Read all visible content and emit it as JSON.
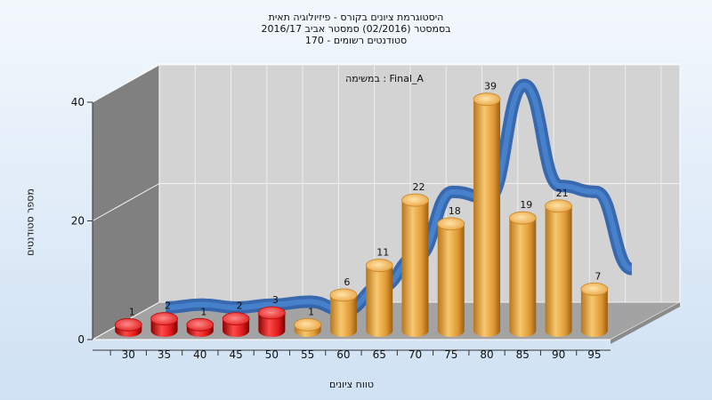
{
  "title_lines": [
    "היסטוגרמת ציונים בקורס - פיזיולוגיה תאית",
    "בסמסטר (02/2016) סמסטר אביב 2016/17",
    "170 - סטודנטים רשומים"
  ],
  "chart_data": {
    "type": "bar",
    "ylabel": "מספר סטודנטים",
    "xlabel": "טווח ציונים",
    "annotation": "במשימה : Final_A",
    "x_ticks": [
      "30",
      "35",
      "40",
      "45",
      "50",
      "55",
      "60",
      "65",
      "70",
      "75",
      "80",
      "85",
      "90",
      "95"
    ],
    "y_ticks": [
      "0",
      "20",
      "40"
    ],
    "ylim": [
      0,
      40
    ],
    "bars": [
      {
        "bin": "30",
        "value": 1,
        "label": "1",
        "status": "fail"
      },
      {
        "bin": "35",
        "value": 2,
        "label": "2",
        "status": "fail"
      },
      {
        "bin": "40",
        "value": 1,
        "label": "1",
        "status": "fail"
      },
      {
        "bin": "45",
        "value": 2,
        "label": "2",
        "status": "fail"
      },
      {
        "bin": "50",
        "value": 3,
        "label": "3",
        "status": "fail"
      },
      {
        "bin": "55",
        "value": 1,
        "label": "1",
        "status": "pass"
      },
      {
        "bin": "60",
        "value": 6,
        "label": "6",
        "status": "pass"
      },
      {
        "bin": "65",
        "value": 11,
        "label": "11",
        "status": "pass"
      },
      {
        "bin": "70",
        "value": 22,
        "label": "22",
        "status": "pass"
      },
      {
        "bin": "75",
        "value": 18,
        "label": "18",
        "status": "pass"
      },
      {
        "bin": "80",
        "value": 39,
        "label": "39",
        "status": "pass"
      },
      {
        "bin": "85",
        "value": 19,
        "label": "19",
        "status": "pass"
      },
      {
        "bin": "90",
        "value": 21,
        "label": "21",
        "status": "pass"
      },
      {
        "bin": "95",
        "value": 7,
        "label": "7",
        "status": "pass"
      }
    ],
    "curve_values": [
      1.5,
      2,
      1.5,
      2,
      2.5,
      1,
      5,
      10,
      21,
      20,
      39,
      22,
      21,
      8
    ],
    "colors": {
      "fail": "#dd1a1a",
      "pass": "#eba845",
      "curve": "#3a74c4",
      "wall": "#d4d4d4",
      "side_wall": "#7f7f7f",
      "floor": "#a6a6a6"
    }
  }
}
